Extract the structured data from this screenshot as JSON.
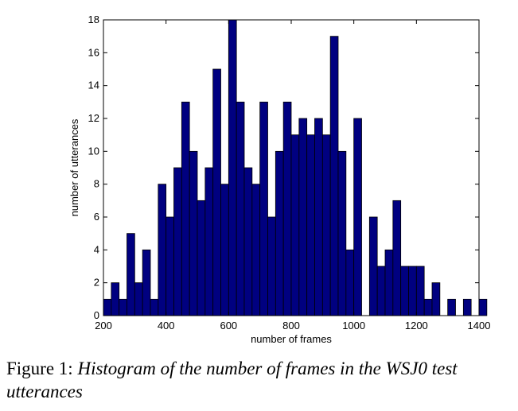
{
  "chart_data": {
    "type": "bar",
    "subtype": "histogram",
    "bin_start": 200,
    "bin_width": 25,
    "counts": [
      1,
      2,
      1,
      5,
      2,
      4,
      1,
      8,
      6,
      9,
      13,
      10,
      7,
      9,
      15,
      8,
      18,
      13,
      9,
      8,
      13,
      6,
      10,
      13,
      11,
      12,
      11,
      12,
      11,
      17,
      10,
      4,
      12,
      0,
      6,
      3,
      4,
      7,
      3,
      3,
      3,
      1,
      2,
      0,
      1,
      0,
      1,
      0,
      1
    ],
    "xlabel": "number of frames",
    "ylabel": "number of utterances",
    "xlim": [
      200,
      1400
    ],
    "ylim": [
      0,
      18
    ],
    "xticks": [
      200,
      400,
      600,
      800,
      1000,
      1200,
      1400
    ],
    "yticks": [
      0,
      2,
      4,
      6,
      8,
      10,
      12,
      14,
      16,
      18
    ],
    "bar_color": "#000080",
    "grid": false
  },
  "caption": {
    "prefix": "Figure 1:",
    "text": "Histogram of the number of frames in the WSJ0 test utterances"
  }
}
